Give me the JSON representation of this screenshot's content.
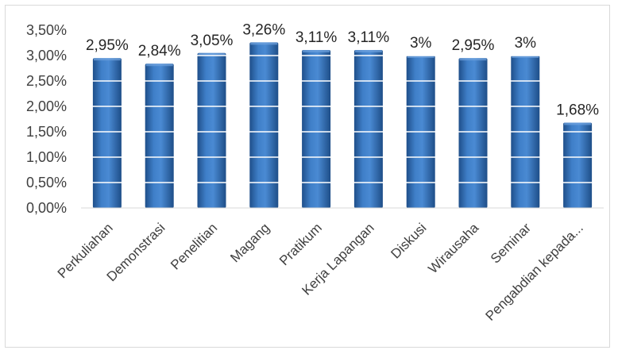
{
  "chart_data": {
    "type": "bar",
    "title": "",
    "xlabel": "",
    "ylabel": "",
    "categories": [
      "Perkuliahan",
      "Demonstrasi",
      "Penelitian",
      "Magang",
      "Pratikum",
      "Kerja Lapangan",
      "Diskusi",
      "Wirausaha",
      "Seminar",
      "Pengabdian kepada..."
    ],
    "values": [
      2.95,
      2.84,
      3.05,
      3.26,
      3.11,
      3.11,
      3.0,
      2.95,
      3.0,
      1.68
    ],
    "data_labels": [
      "2,95%",
      "2,84%",
      "3,05%",
      "3,26%",
      "3,11%",
      "3,11%",
      "3%",
      "2,95%",
      "3%",
      "1,68%"
    ],
    "ylim": [
      0,
      3.5
    ],
    "y_ticks": [
      0,
      0.5,
      1.0,
      1.5,
      2.0,
      2.5,
      3.0,
      3.5
    ],
    "y_tick_labels": [
      "0,00%",
      "0,50%",
      "1,00%",
      "1,50%",
      "2,00%",
      "2,50%",
      "3,00%",
      "3,50%"
    ],
    "grid": true,
    "legend": "none",
    "bar_color": "#2E6DB5",
    "gridline_color": "#ffffff"
  }
}
